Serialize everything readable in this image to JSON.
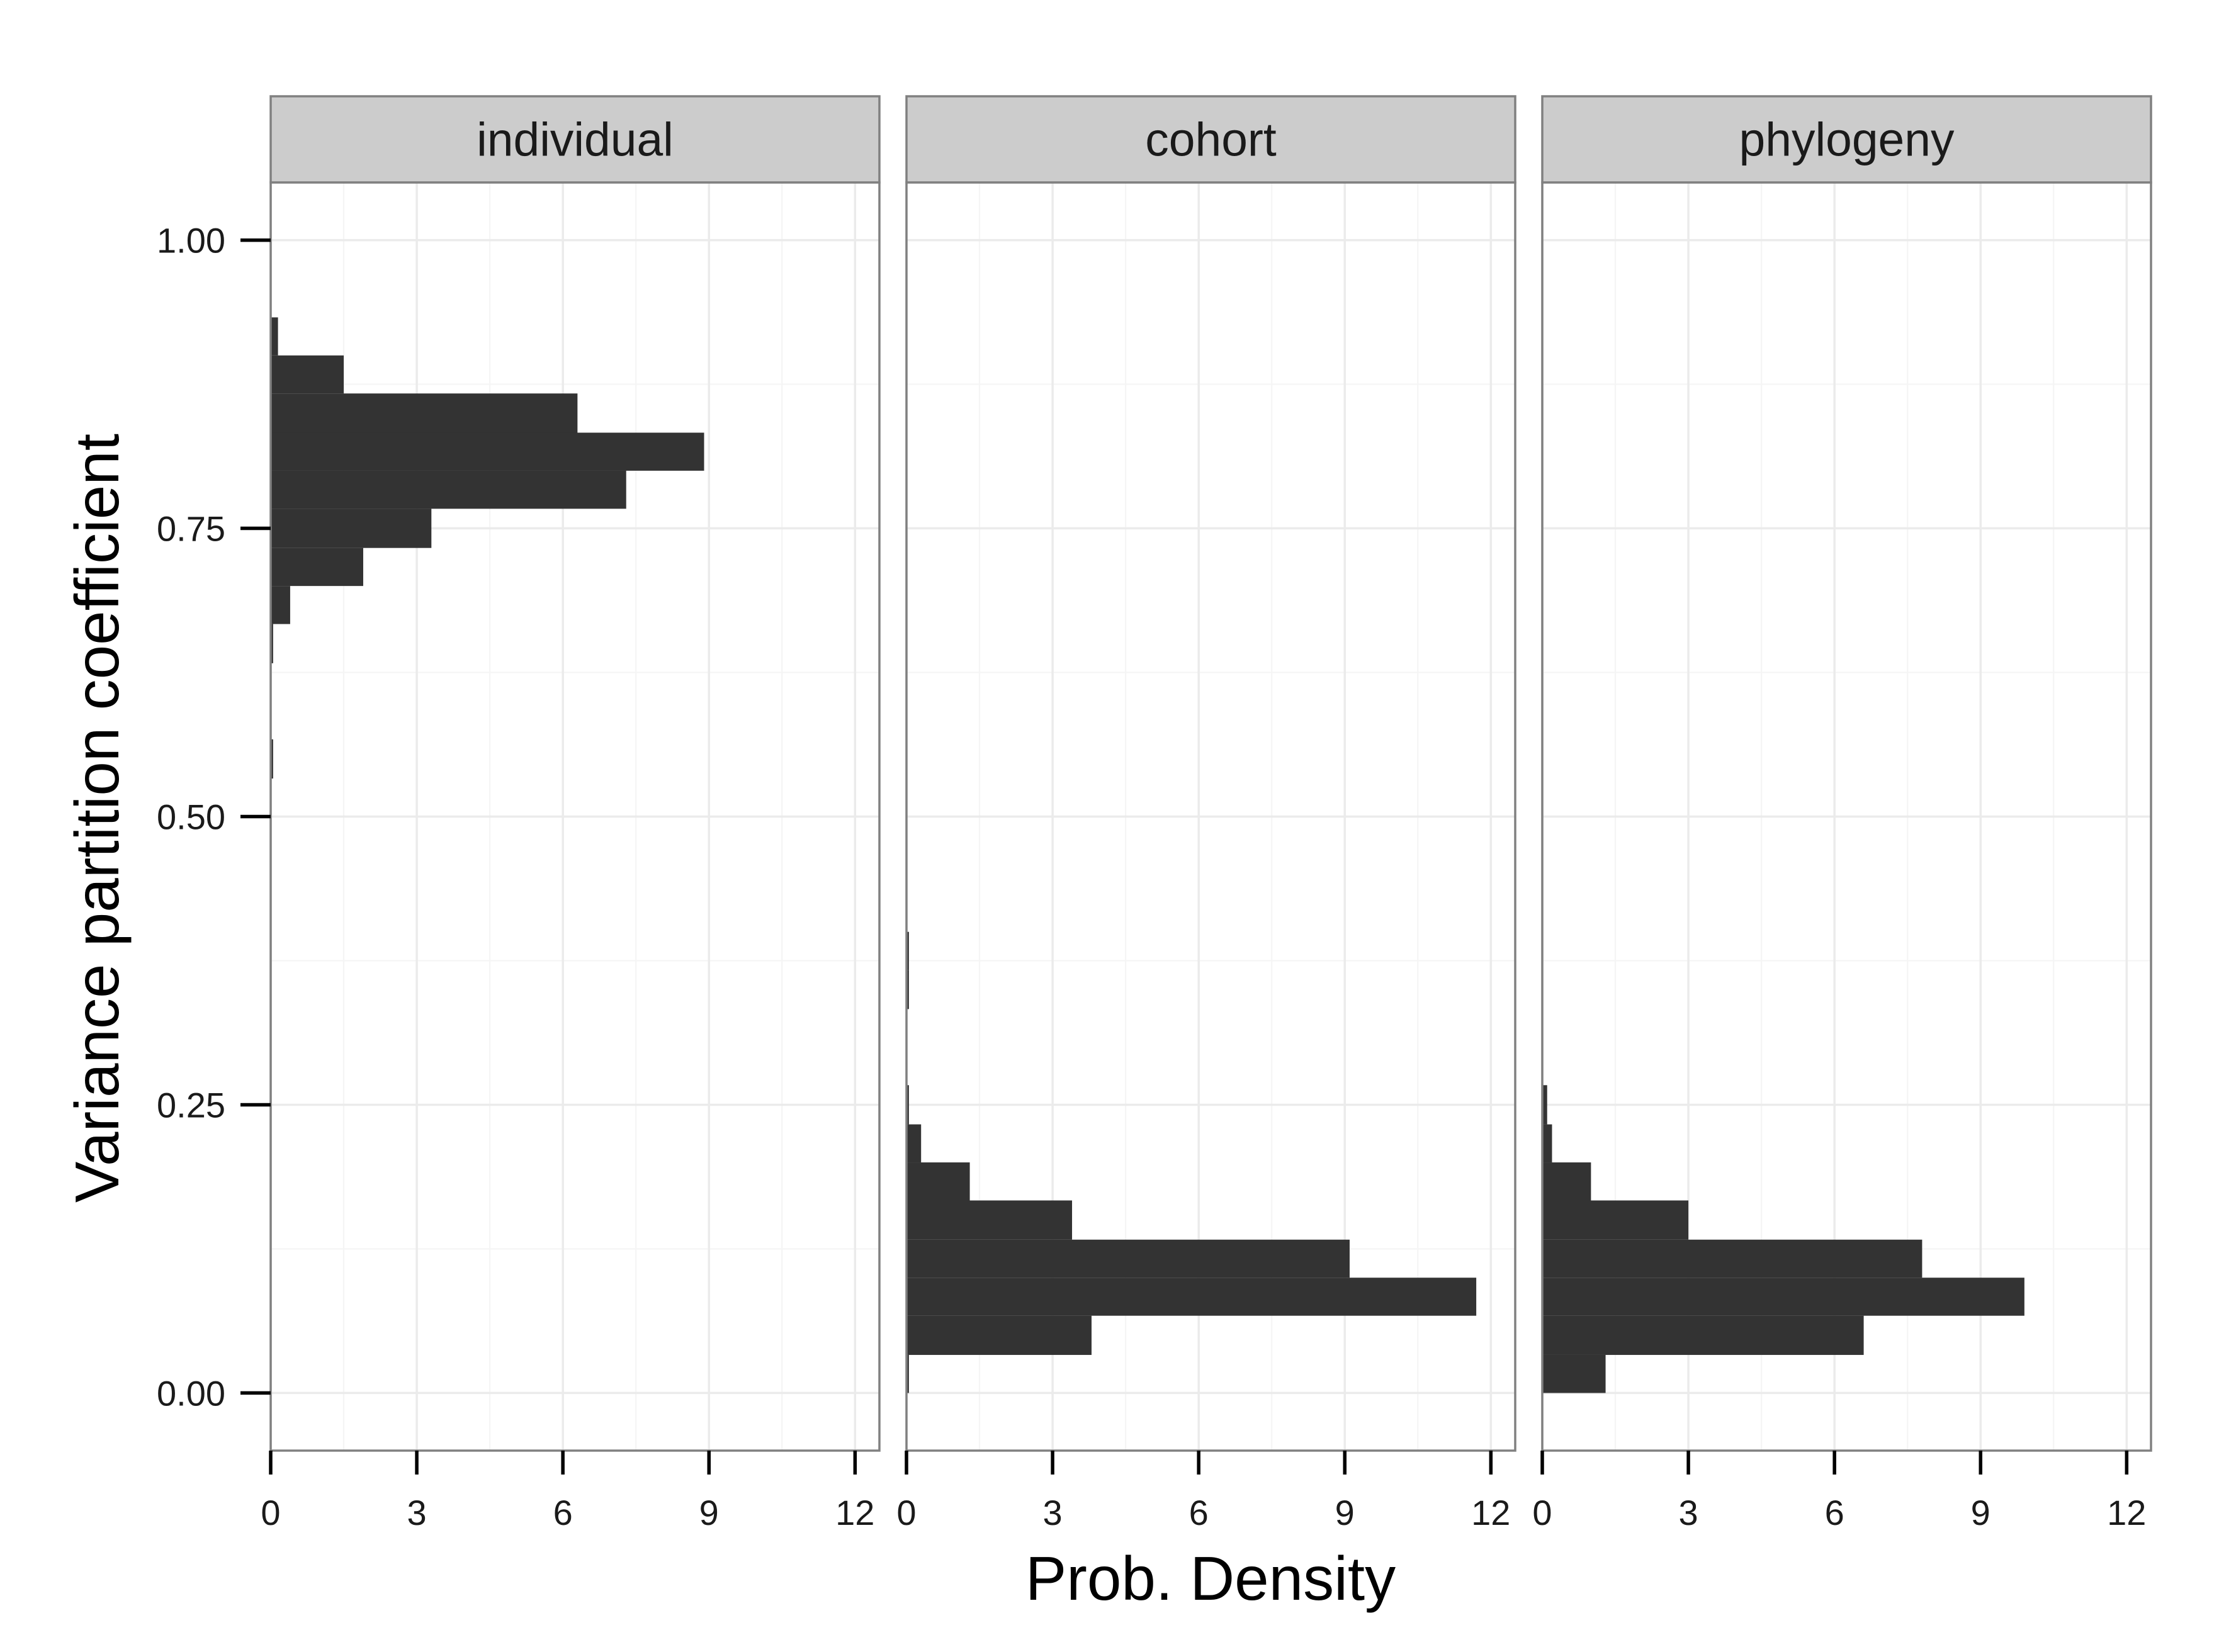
{
  "chart_data": {
    "type": "bar",
    "orientation": "horizontal-histogram",
    "xlabel": "Prob. Density",
    "ylabel": "Variance partition coefficient",
    "xlim": [
      0,
      12.5
    ],
    "ylim": [
      -0.05,
      1.05
    ],
    "x_ticks": [
      0,
      3,
      6,
      9,
      12
    ],
    "y_ticks": [
      0.0,
      0.25,
      0.5,
      0.75,
      1.0
    ],
    "x_tick_labels": [
      "0",
      "3",
      "6",
      "9",
      "12"
    ],
    "y_tick_labels": [
      "0.00",
      "0.25",
      "0.50",
      "0.75",
      "1.00"
    ],
    "grid": true,
    "bar_color": "#333333",
    "panels": [
      {
        "name": "individual",
        "bins": [
          {
            "y0": 0.533,
            "y1": 0.567,
            "density": 0.05
          },
          {
            "y0": 0.633,
            "y1": 0.667,
            "density": 0.05
          },
          {
            "y0": 0.667,
            "y1": 0.7,
            "density": 0.4
          },
          {
            "y0": 0.7,
            "y1": 0.733,
            "density": 1.9
          },
          {
            "y0": 0.733,
            "y1": 0.767,
            "density": 3.3
          },
          {
            "y0": 0.767,
            "y1": 0.8,
            "density": 7.3
          },
          {
            "y0": 0.8,
            "y1": 0.833,
            "density": 8.9
          },
          {
            "y0": 0.833,
            "y1": 0.867,
            "density": 6.3
          },
          {
            "y0": 0.867,
            "y1": 0.9,
            "density": 1.5
          },
          {
            "y0": 0.9,
            "y1": 0.933,
            "density": 0.15
          }
        ]
      },
      {
        "name": "cohort",
        "bins": [
          {
            "y0": 0.0,
            "y1": 0.033,
            "density": 0.05
          },
          {
            "y0": 0.033,
            "y1": 0.067,
            "density": 3.8
          },
          {
            "y0": 0.067,
            "y1": 0.1,
            "density": 11.7
          },
          {
            "y0": 0.1,
            "y1": 0.133,
            "density": 9.1
          },
          {
            "y0": 0.133,
            "y1": 0.167,
            "density": 3.4
          },
          {
            "y0": 0.167,
            "y1": 0.2,
            "density": 1.3
          },
          {
            "y0": 0.2,
            "y1": 0.233,
            "density": 0.3
          },
          {
            "y0": 0.233,
            "y1": 0.267,
            "density": 0.05
          },
          {
            "y0": 0.333,
            "y1": 0.367,
            "density": 0.05
          },
          {
            "y0": 0.367,
            "y1": 0.4,
            "density": 0.05
          }
        ]
      },
      {
        "name": "phylogeny",
        "bins": [
          {
            "y0": 0.0,
            "y1": 0.033,
            "density": 1.3
          },
          {
            "y0": 0.033,
            "y1": 0.067,
            "density": 6.6
          },
          {
            "y0": 0.067,
            "y1": 0.1,
            "density": 9.9
          },
          {
            "y0": 0.1,
            "y1": 0.133,
            "density": 7.8
          },
          {
            "y0": 0.133,
            "y1": 0.167,
            "density": 3.0
          },
          {
            "y0": 0.167,
            "y1": 0.2,
            "density": 1.0
          },
          {
            "y0": 0.2,
            "y1": 0.233,
            "density": 0.2
          },
          {
            "y0": 0.233,
            "y1": 0.267,
            "density": 0.1
          }
        ]
      }
    ]
  }
}
